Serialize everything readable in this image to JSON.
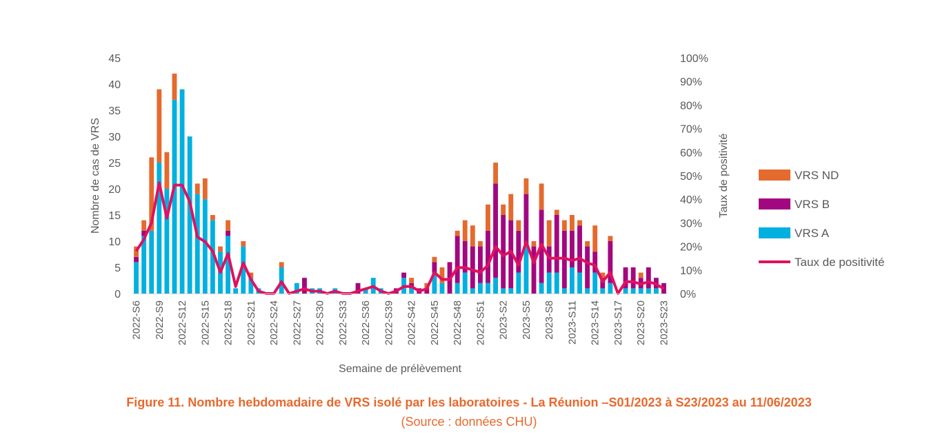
{
  "chart_data": {
    "type": "bar",
    "stacked": true,
    "title": "Figure 11. Nombre hebdomadaire de VRS isolé par les laboratoires - La Réunion –S01/2023 à S23/2023 au 11/06/2023",
    "subtitle": "(Source : données CHU)",
    "xlabel": "Semaine de prélèvement",
    "ylabel": "Nombre de cas de VRS",
    "y2label": "Taux de positivité",
    "ylim": [
      0,
      45
    ],
    "y2lim": [
      0,
      100
    ],
    "yticks": [
      "0",
      "5",
      "10",
      "15",
      "20",
      "25",
      "30",
      "35",
      "40",
      "45"
    ],
    "y2ticks": [
      "0%",
      "10%",
      "20%",
      "30%",
      "40%",
      "50%",
      "60%",
      "70%",
      "80%",
      "90%",
      "100%"
    ],
    "categories": [
      "2022-S6",
      "2022-S7",
      "2022-S8",
      "2022-S9",
      "2022-S10",
      "2022-S11",
      "2022-S12",
      "2022-S13",
      "2022-S14",
      "2022-S15",
      "2022-S16",
      "2022-S17",
      "2022-S18",
      "2022-S19",
      "2022-S20",
      "2022-S21",
      "2022-S22",
      "2022-S23",
      "2022-S24",
      "2022-S25",
      "2022-S26",
      "2022-S27",
      "2022-S28",
      "2022-S29",
      "2022-S30",
      "2022-S31",
      "2022-S32",
      "2022-S33",
      "2022-S34",
      "2022-S35",
      "2022-S36",
      "2022-S37",
      "2022-S38",
      "2022-S39",
      "2022-S40",
      "2022-S41",
      "2022-S42",
      "2022-S43",
      "2022-S44",
      "2022-S45",
      "2022-S46",
      "2022-S47",
      "2022-S48",
      "2022-S49",
      "2022-S50",
      "2022-S51",
      "2022-S52",
      "2023-S1",
      "2023-S2",
      "2023-S3",
      "2023-S4",
      "2023-S5",
      "2023-S6",
      "2023-S7",
      "2023-S8",
      "2023-S9",
      "2023-S10",
      "2023-S11",
      "2023-S12",
      "2023-S13",
      "2023-S14",
      "2023-S15",
      "2023-S16",
      "2023-S17",
      "2023-S18",
      "2023-S19",
      "2023-S20",
      "2023-S21",
      "2023-S22",
      "2023-S23"
    ],
    "series": [
      {
        "name": "VRS A",
        "color": "#00B0E0",
        "values": [
          6,
          11,
          12,
          25,
          20,
          37,
          39,
          30,
          19,
          18,
          14,
          8,
          11,
          1,
          9,
          3,
          1,
          0,
          0,
          5,
          0,
          2,
          0,
          1,
          1,
          0,
          1,
          0,
          0,
          0,
          1,
          3,
          1,
          0,
          0,
          3,
          1,
          0,
          0,
          4,
          2,
          0,
          2,
          4,
          1,
          2,
          2,
          3,
          1,
          1,
          4,
          9,
          0,
          2,
          4,
          4,
          1,
          5,
          4,
          1,
          4,
          1,
          2,
          0,
          1,
          1,
          1,
          1,
          1,
          0
        ]
      },
      {
        "name": "VRS B",
        "color": "#A3077F",
        "values": [
          1,
          1,
          0,
          0,
          0,
          0,
          0,
          0,
          0,
          0,
          0,
          0,
          1,
          0,
          0,
          0,
          0,
          0,
          0,
          0,
          0,
          0,
          3,
          0,
          0,
          0,
          0,
          0,
          0,
          2,
          0,
          0,
          0,
          0,
          1,
          1,
          1,
          1,
          1,
          2,
          0,
          6,
          9,
          6,
          8,
          7,
          10,
          18,
          14,
          13,
          8,
          10,
          9,
          14,
          5,
          11,
          11,
          7,
          9,
          8,
          4,
          2,
          8,
          0,
          4,
          4,
          2,
          4,
          2,
          2
        ]
      },
      {
        "name": "VRS ND",
        "color": "#E46A2E",
        "values": [
          2,
          2,
          14,
          14,
          7,
          5,
          0,
          0,
          2,
          4,
          1,
          1,
          2,
          0,
          1,
          1,
          0,
          0,
          0,
          1,
          0,
          0,
          0,
          0,
          0,
          0,
          0,
          0,
          0,
          0,
          0,
          0,
          0,
          0,
          0,
          0,
          1,
          0,
          1,
          1,
          3,
          0,
          1,
          4,
          4,
          1,
          5,
          4,
          2,
          5,
          2,
          3,
          1,
          5,
          5,
          1,
          2,
          3,
          1,
          1,
          5,
          1,
          1,
          0,
          0,
          0,
          1,
          0,
          0,
          0
        ]
      }
    ],
    "line": {
      "name": "Taux de positivité",
      "color": "#E0115F",
      "axis": "right",
      "values": [
        18,
        23,
        30,
        47,
        32,
        46,
        46,
        39,
        24,
        22,
        18,
        9,
        17,
        3,
        13,
        6,
        1,
        0,
        0,
        5,
        0,
        1,
        2,
        1,
        1,
        0,
        1,
        0,
        0,
        1,
        2,
        3,
        1,
        0,
        1,
        3,
        3,
        1,
        2,
        9,
        6,
        6,
        11,
        11,
        10,
        9,
        12,
        20,
        16,
        18,
        12,
        22,
        13,
        21,
        15,
        15,
        15,
        14,
        15,
        13,
        12,
        5,
        9,
        0,
        5,
        5,
        4,
        5,
        4,
        2
      ]
    },
    "legend": [
      "VRS ND",
      "VRS B",
      "VRS A",
      "Taux de positivité"
    ],
    "legend_position": "right"
  }
}
